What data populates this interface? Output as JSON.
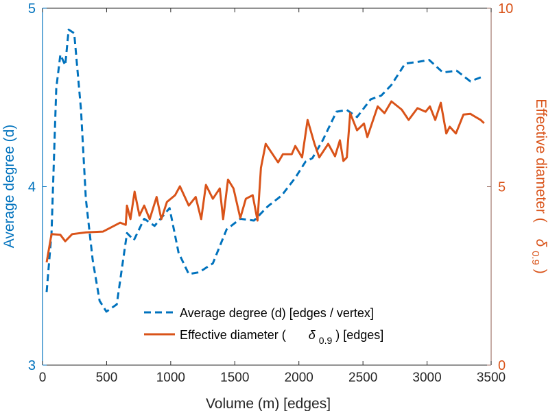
{
  "chart_data": {
    "type": "line",
    "xlabel": "Volume (m) [edges]",
    "ylabel_left": "Average degree (d)",
    "ylabel_right_prefix": "Effective diameter (",
    "ylabel_right_symbol": "δ",
    "ylabel_right_sub": "0.9",
    "ylabel_right_suffix": ")",
    "xlim": [
      0,
      3500
    ],
    "ylim_left": [
      3,
      5
    ],
    "ylim_right": [
      0,
      10
    ],
    "xticks": [
      "0",
      "500",
      "1000",
      "1500",
      "2000",
      "2500",
      "3000",
      "3500"
    ],
    "yticks_left": [
      "3",
      "4",
      "5"
    ],
    "yticks_right": [
      "0",
      "5",
      "10"
    ],
    "grid": false,
    "legend_placement": "bottom-center",
    "colors": {
      "left": "#0072BD",
      "right": "#D95319",
      "right_axis": "#A0756A"
    },
    "legend": [
      {
        "text": "Average degree (d) [edges / vertex]"
      },
      {
        "prefix": "Effective diameter (",
        "symbol": "δ",
        "sub": "0.9",
        "suffix": ") [edges]"
      }
    ],
    "series": [
      {
        "name": "Average degree (d) [edges / vertex]",
        "axis": "left",
        "style": "dashed",
        "x": [
          32,
          70,
          107,
          139,
          177,
          204,
          247,
          300,
          338,
          391,
          445,
          498,
          579,
          659,
          713,
          793,
          874,
          991,
          1061,
          1141,
          1222,
          1329,
          1436,
          1543,
          1650,
          1758,
          1865,
          1972,
          2052,
          2106,
          2186,
          2293,
          2374,
          2454,
          2561,
          2642,
          2722,
          2829,
          2936,
          3016,
          3124,
          3231,
          3338,
          3445
        ],
        "y": [
          3.41,
          3.74,
          4.55,
          4.74,
          4.68,
          4.88,
          4.86,
          4.43,
          3.93,
          3.59,
          3.36,
          3.3,
          3.34,
          3.74,
          3.7,
          3.82,
          3.78,
          3.88,
          3.63,
          3.51,
          3.52,
          3.57,
          3.76,
          3.82,
          3.81,
          3.89,
          3.95,
          4.05,
          4.14,
          4.16,
          4.26,
          4.42,
          4.43,
          4.39,
          4.49,
          4.51,
          4.57,
          4.69,
          4.7,
          4.71,
          4.64,
          4.65,
          4.59,
          4.62
        ]
      },
      {
        "name": "Effective diameter (δ0.9) [edges]",
        "axis": "right",
        "style": "solid",
        "x": [
          32,
          70,
          139,
          177,
          231,
          338,
          472,
          606,
          649,
          659,
          686,
          718,
          756,
          793,
          836,
          890,
          927,
          970,
          1034,
          1072,
          1141,
          1195,
          1238,
          1275,
          1329,
          1383,
          1409,
          1447,
          1490,
          1543,
          1586,
          1640,
          1677,
          1704,
          1741,
          1795,
          1838,
          1875,
          1945,
          1972,
          2025,
          2068,
          2122,
          2159,
          2229,
          2282,
          2320,
          2347,
          2374,
          2400,
          2454,
          2508,
          2534,
          2615,
          2668,
          2722,
          2802,
          2856,
          2925,
          2989,
          3022,
          3064,
          3107,
          3150,
          3177,
          3225,
          3284,
          3338,
          3375,
          3418,
          3445
        ],
        "y": [
          2.88,
          3.67,
          3.65,
          3.47,
          3.67,
          3.72,
          3.74,
          3.99,
          3.93,
          4.47,
          4.09,
          4.86,
          4.19,
          4.47,
          4.09,
          4.71,
          4.09,
          4.57,
          4.76,
          5.01,
          4.47,
          4.71,
          4.09,
          5.05,
          4.66,
          4.95,
          4.09,
          5.2,
          4.95,
          4.12,
          4.66,
          4.76,
          4.05,
          5.53,
          6.2,
          5.91,
          5.68,
          5.91,
          5.91,
          6.14,
          5.82,
          6.87,
          6.2,
          5.82,
          6.2,
          5.85,
          6.3,
          5.72,
          5.82,
          7.06,
          6.58,
          6.77,
          6.39,
          7.25,
          7.06,
          7.39,
          7.16,
          6.87,
          7.2,
          7.1,
          7.25,
          6.87,
          7.35,
          6.49,
          6.68,
          6.49,
          7.02,
          7.04,
          6.96,
          6.87,
          6.78
        ]
      }
    ]
  }
}
